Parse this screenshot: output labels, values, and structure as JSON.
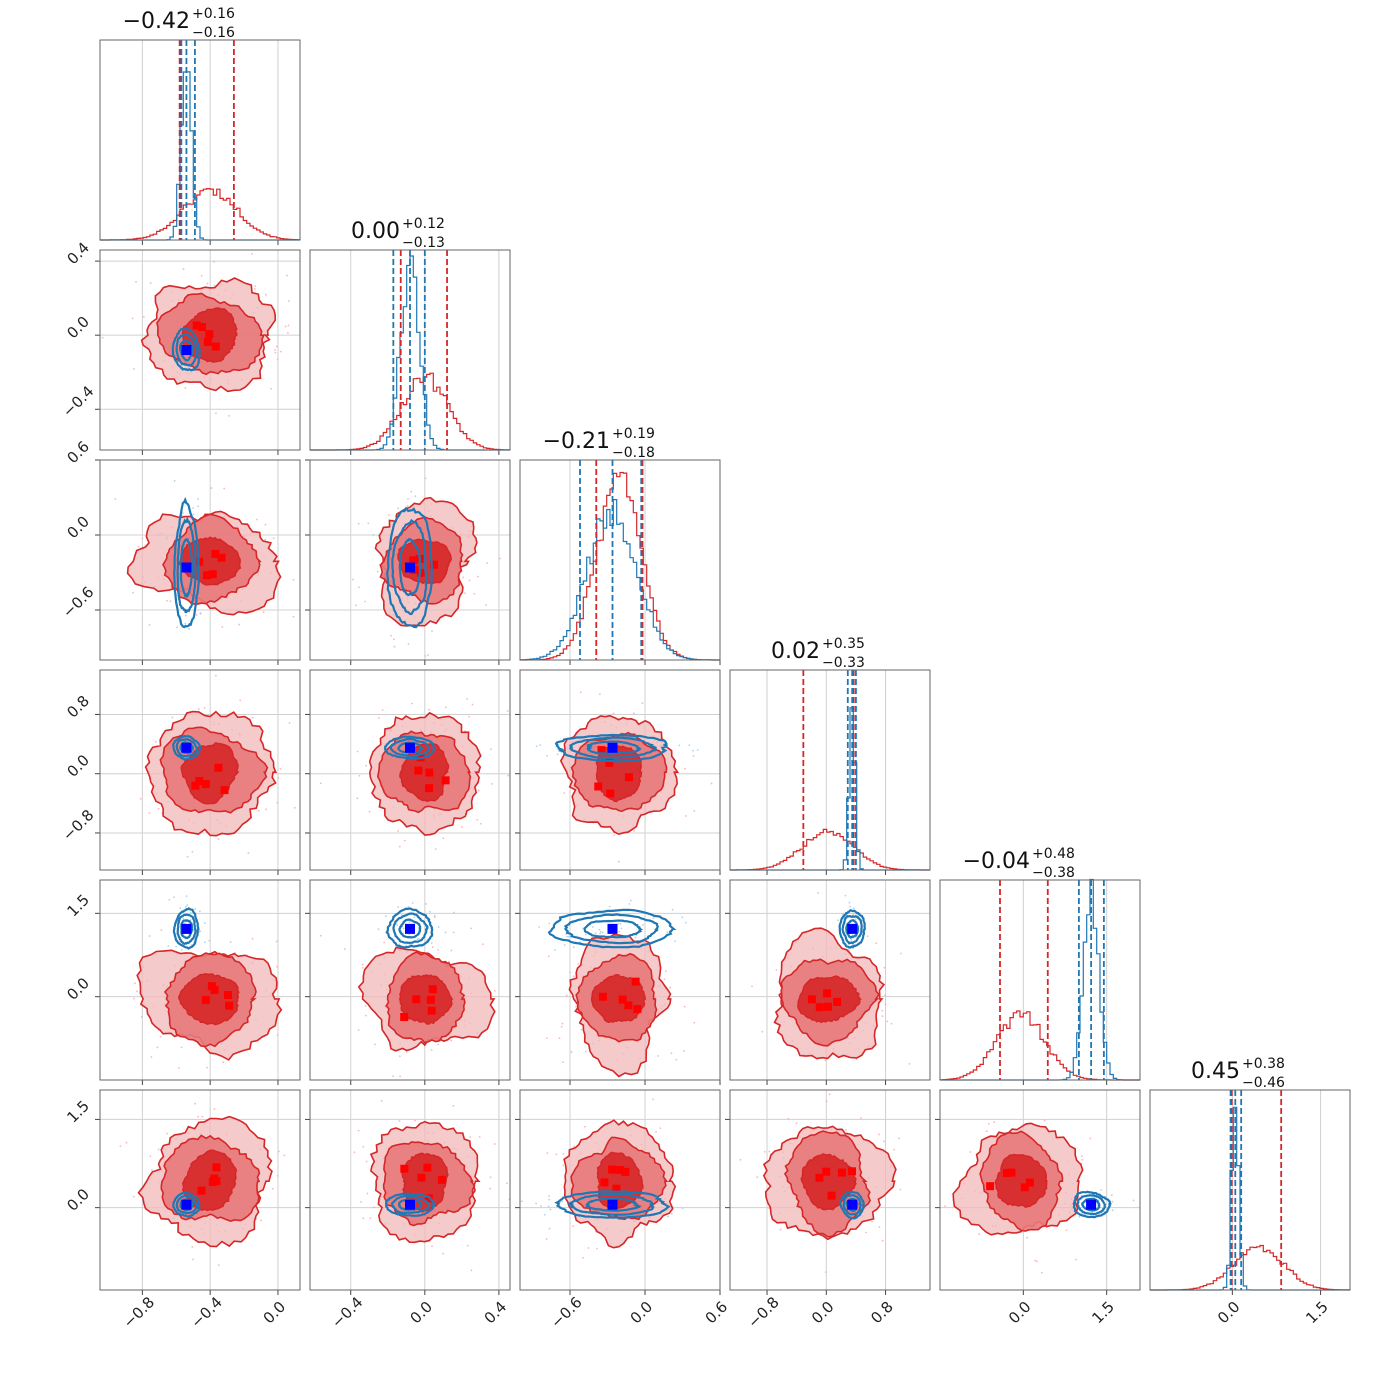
{
  "chart_data": {
    "type": "corner",
    "n_params": 6,
    "grid": true,
    "colors": {
      "red": "#d62728",
      "red_mid": "#e8797b",
      "red_light": "#f2b8b9",
      "blue": "#1f77b4",
      "truth": "#0000ff",
      "red_point": "#ff0000"
    },
    "params": [
      {
        "range": [
          -1.05,
          0.13
        ],
        "median": -0.42,
        "plus": "+0.16",
        "minus": "−0.16",
        "median_label": "−0.42",
        "red": {
          "mean": -0.4,
          "sd": 0.16,
          "q": [
            -0.58,
            -0.42,
            -0.26
          ]
        },
        "blue": {
          "mean": -0.54,
          "sd": 0.03,
          "q": [
            -0.57,
            -0.54,
            -0.49
          ]
        },
        "truth": -0.54,
        "ticks": [
          -0.8,
          -0.4,
          0.0
        ],
        "tick_labels": [
          "−0.8",
          "−0.4",
          "0.0"
        ]
      },
      {
        "range": [
          -0.62,
          0.46
        ],
        "median": 0.0,
        "plus": "+0.12",
        "minus": "−0.13",
        "median_label": "0.00",
        "red": {
          "mean": 0.0,
          "sd": 0.125,
          "q": [
            -0.13,
            0.0,
            0.12
          ]
        },
        "blue": {
          "mean": -0.08,
          "sd": 0.05,
          "q": [
            -0.17,
            -0.08,
            0.0
          ]
        },
        "truth": -0.08,
        "ticks": [
          -0.4,
          0.0,
          0.4
        ],
        "tick_labels": [
          "−0.4",
          "0.0",
          "0.4"
        ]
      },
      {
        "range": [
          -1.0,
          0.6
        ],
        "median": -0.21,
        "plus": "+0.19",
        "minus": "−0.18",
        "median_label": "−0.21",
        "red": {
          "mean": -0.21,
          "sd": 0.18,
          "q": [
            -0.39,
            -0.21,
            -0.02
          ]
        },
        "blue": {
          "mean": -0.26,
          "sd": 0.2,
          "q": [
            -0.52,
            -0.26,
            -0.03
          ]
        },
        "truth": -0.26,
        "ticks": [
          -0.6,
          0.0,
          0.6
        ],
        "tick_labels": [
          "−0.6",
          "0.0",
          "0.6"
        ]
      },
      {
        "range": [
          -1.3,
          1.4
        ],
        "median": 0.02,
        "plus": "+0.35",
        "minus": "−0.33",
        "median_label": "0.02",
        "red": {
          "mean": 0.02,
          "sd": 0.34,
          "q": [
            -0.31,
            0.02,
            0.37
          ]
        },
        "blue": {
          "mean": 0.35,
          "sd": 0.04,
          "q": [
            0.29,
            0.35,
            0.4
          ]
        },
        "truth": 0.35,
        "ticks": [
          -0.8,
          0.0,
          0.8
        ],
        "tick_labels": [
          "−0.8",
          "0.0",
          "0.8"
        ]
      },
      {
        "range": [
          -1.5,
          2.1
        ],
        "median": -0.04,
        "plus": "+0.48",
        "minus": "−0.38",
        "median_label": "−0.04",
        "red": {
          "mean": -0.04,
          "sd": 0.43,
          "q": [
            -0.42,
            -0.04,
            0.44
          ]
        },
        "blue": {
          "mean": 1.22,
          "sd": 0.14,
          "q": [
            1.0,
            1.22,
            1.45
          ]
        },
        "truth": 1.22,
        "ticks": [
          0.0,
          1.5
        ],
        "tick_labels": [
          "0.0",
          "1.5"
        ]
      },
      {
        "range": [
          -1.4,
          2.0
        ],
        "median": 0.45,
        "plus": "+0.38",
        "minus": "−0.46",
        "median_label": "0.45",
        "red": {
          "mean": 0.45,
          "sd": 0.42,
          "q": [
            -0.01,
            0.45,
            0.83
          ]
        },
        "blue": {
          "mean": 0.05,
          "sd": 0.06,
          "q": [
            -0.03,
            0.05,
            0.15
          ]
        },
        "truth": 0.05,
        "ticks": [
          0.0,
          1.5
        ],
        "tick_labels": [
          "0.0",
          "1.5"
        ]
      }
    ]
  }
}
